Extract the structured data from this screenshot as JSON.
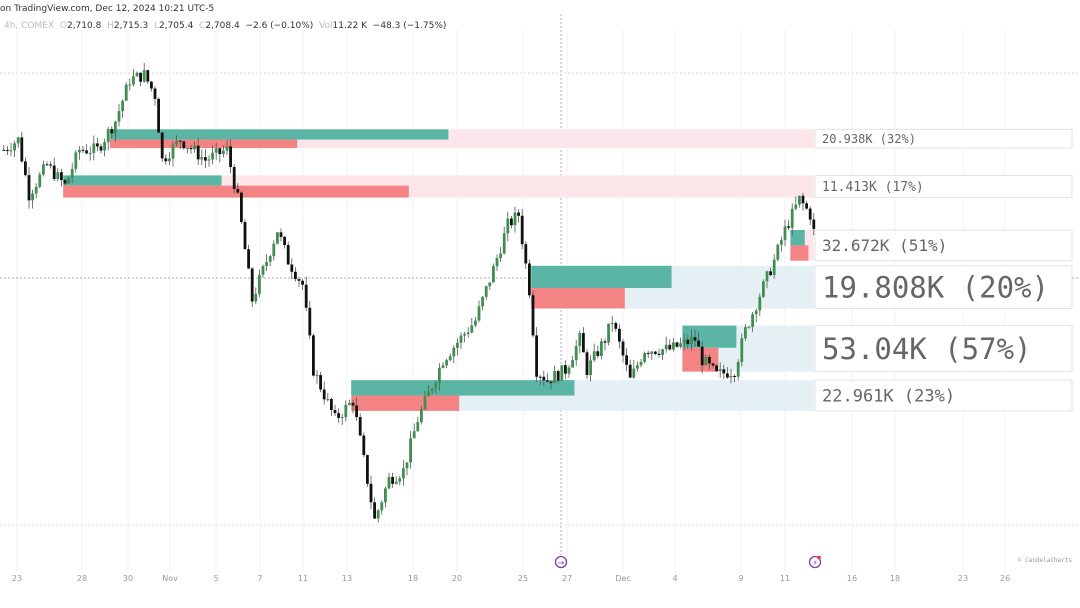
{
  "header": {
    "source": "on TradingView.com, Dec 12, 2024 10:21 UTC-5",
    "interval": "4h, COMEX",
    "o_label": "O",
    "open": "2,710.8",
    "h_label": "H",
    "high": "2,715.3",
    "l_label": "L",
    "low": "2,705.4",
    "c_label": "C",
    "close": "2,708.4",
    "change": "−2.6 (−0.10%)",
    "vol_label": "Vol",
    "volume": "11.22 K",
    "vol_change": "−48.3 (−1.75%)"
  },
  "watermark": "© CandelaCharts",
  "icons": {
    "marker_1": "arrow-right-circle-icon",
    "marker_2": "lightning-circle-icon"
  },
  "colors": {
    "bull_candle": "#3f8f4f",
    "bear_candle": "#111111",
    "zone_green": "#5bb5a5",
    "zone_red": "#f48484",
    "zone_pink": "#fde6ea",
    "zone_blue": "#e5f0f4"
  },
  "chart_data": {
    "type": "candlestick",
    "ylim": [
      2530,
      2810
    ],
    "x_ticks": [
      "23",
      "28",
      "30",
      "Nov",
      "5",
      "7",
      "11",
      "13",
      "18",
      "20",
      "25",
      "27",
      "Dec",
      "4",
      "9",
      "11",
      "16",
      "18",
      "23",
      "26"
    ],
    "close_path": [
      [
        0,
        2756
      ],
      [
        4,
        2762
      ],
      [
        7,
        2730
      ],
      [
        12,
        2747
      ],
      [
        17,
        2735
      ],
      [
        21,
        2756
      ],
      [
        26,
        2756
      ],
      [
        31,
        2773
      ],
      [
        35,
        2797
      ],
      [
        39,
        2800
      ],
      [
        42,
        2788
      ],
      [
        44,
        2750
      ],
      [
        49,
        2762
      ],
      [
        56,
        2750
      ],
      [
        62,
        2756
      ],
      [
        65,
        2727
      ],
      [
        69,
        2668
      ],
      [
        73,
        2691
      ],
      [
        76,
        2709
      ],
      [
        79,
        2691
      ],
      [
        83,
        2677
      ],
      [
        86,
        2627
      ],
      [
        92,
        2598
      ],
      [
        97,
        2609
      ],
      [
        100,
        2574
      ],
      [
        103,
        2539
      ],
      [
        107,
        2563
      ],
      [
        111,
        2568
      ],
      [
        115,
        2598
      ],
      [
        122,
        2633
      ],
      [
        131,
        2656
      ],
      [
        136,
        2686
      ],
      [
        140,
        2712
      ],
      [
        143,
        2718
      ],
      [
        146,
        2674
      ],
      [
        148,
        2627
      ],
      [
        151,
        2621
      ],
      [
        156,
        2627
      ],
      [
        160,
        2645
      ],
      [
        162,
        2627
      ],
      [
        167,
        2645
      ],
      [
        169,
        2656
      ],
      [
        174,
        2621
      ],
      [
        178,
        2639
      ],
      [
        185,
        2639
      ],
      [
        192,
        2645
      ],
      [
        194,
        2633
      ],
      [
        198,
        2624
      ],
      [
        203,
        2627
      ],
      [
        206,
        2650
      ],
      [
        210,
        2671
      ],
      [
        214,
        2691
      ],
      [
        217,
        2709
      ],
      [
        221,
        2727
      ],
      [
        224,
        2718
      ],
      [
        225,
        2708
      ]
    ],
    "zones": [
      {
        "label": "20.938K (32%)",
        "top": 2768,
        "mid": 2762,
        "bottom": 2757,
        "start": 30,
        "green_end": 124,
        "red_end": 82,
        "type": "bearish"
      },
      {
        "label": "11.413K (17%)",
        "top": 2741,
        "mid": 2735,
        "bottom": 2728,
        "start": 17,
        "green_end": 61,
        "red_end": 113,
        "type": "bearish"
      },
      {
        "label": "32.672K (51%)",
        "top": 2709,
        "mid": 2700,
        "bottom": 2691,
        "start": 219,
        "green_end": 223,
        "red_end": 224,
        "type": "bearish"
      },
      {
        "label": "19.808K (20%)",
        "top": 2688,
        "mid": 2675,
        "bottom": 2663,
        "start": 147,
        "green_end": 186,
        "red_end": 173,
        "type": "bullish"
      },
      {
        "label": "53.04K (57%)",
        "top": 2653,
        "mid": 2640,
        "bottom": 2626,
        "start": 189,
        "green_end": 204,
        "red_end": 199,
        "type": "bullish"
      },
      {
        "label": "22.961K (23%)",
        "top": 2621,
        "mid": 2612,
        "bottom": 2603,
        "start": 97,
        "green_end": 159,
        "red_end": 127,
        "type": "bullish"
      }
    ]
  }
}
